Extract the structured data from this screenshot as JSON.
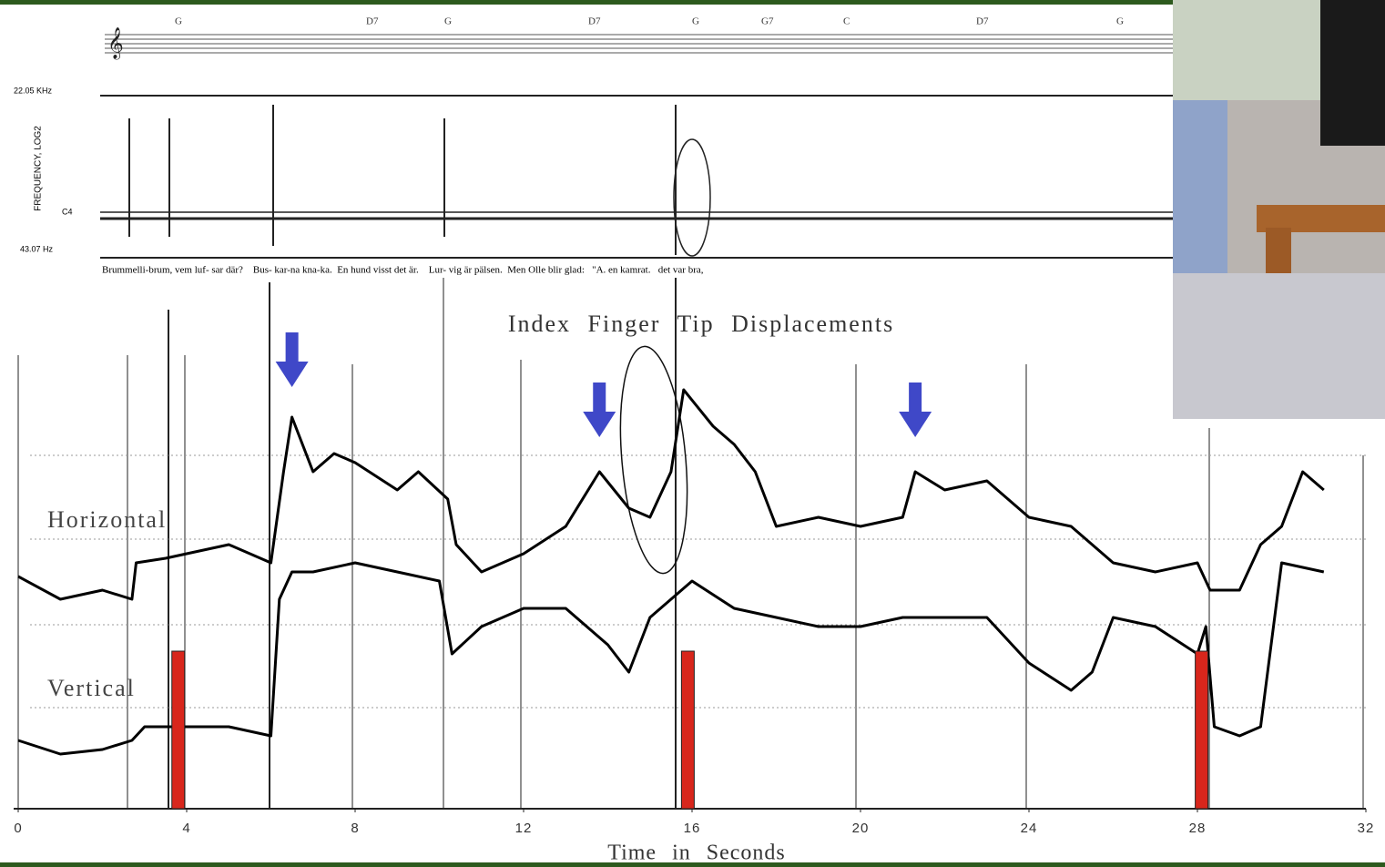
{
  "chart_data": {
    "type": "line",
    "title": "Index Finger Tip Displacements",
    "x_label": "Time in Seconds",
    "xlim": [
      0,
      32
    ],
    "xticks": [
      0,
      4,
      8,
      12,
      16,
      20,
      24,
      28,
      32
    ],
    "ylim": [
      0,
      100
    ],
    "highlight_color": "#d8261c",
    "highlights_x": [
      3.8,
      15.9,
      28.1
    ],
    "arrow_color": "#3f48c8",
    "arrows_x": [
      6.5,
      13.8,
      21.3
    ],
    "x": [],
    "series": [
      {
        "name": "Horizontal",
        "color": "#000000",
        "x": [
          0,
          1,
          2,
          2.7,
          2.8,
          3.5,
          4,
          5,
          6,
          6.3,
          6.5,
          7,
          7.5,
          8,
          9,
          9.5,
          10.2,
          10.4,
          11,
          12,
          13,
          13.8,
          14.5,
          15,
          15.5,
          15.8,
          16.5,
          17,
          17.5,
          18,
          19,
          20,
          21,
          21.3,
          22,
          23,
          24,
          25,
          26,
          27,
          28,
          28.3,
          29,
          29.5,
          30,
          30.5,
          31
        ],
        "values": [
          51,
          46,
          48,
          46,
          54,
          55,
          56,
          58,
          54,
          74,
          86,
          74,
          78,
          76,
          70,
          74,
          68,
          58,
          52,
          56,
          62,
          74,
          66,
          64,
          74,
          92,
          84,
          80,
          74,
          62,
          64,
          62,
          64,
          74,
          70,
          72,
          64,
          62,
          54,
          52,
          54,
          48,
          48,
          58,
          62,
          74,
          70
        ]
      },
      {
        "name": "Vertical",
        "color": "#000000",
        "x": [
          0,
          1,
          2,
          2.7,
          3,
          4,
          5,
          6,
          6.2,
          6.5,
          7,
          8,
          9,
          10,
          10.3,
          11,
          12,
          13,
          14,
          14.5,
          15,
          16,
          17,
          18,
          19,
          20,
          21,
          22,
          23,
          24,
          25,
          25.5,
          26,
          27,
          28,
          28.2,
          28.4,
          29,
          29.5,
          30,
          31
        ],
        "values": [
          15,
          12,
          13,
          15,
          18,
          18,
          18,
          16,
          46,
          52,
          52,
          54,
          52,
          50,
          34,
          40,
          44,
          44,
          36,
          30,
          42,
          50,
          44,
          42,
          40,
          40,
          42,
          42,
          42,
          32,
          26,
          30,
          42,
          40,
          34,
          40,
          18,
          16,
          18,
          54,
          52
        ]
      }
    ]
  },
  "spectrogram": {
    "y_label": "FREQUENCY, LOG2",
    "top_label": "22.05 KHz",
    "bottom_label": "43.07 Hz",
    "note_label": "C4",
    "chords": [
      "G",
      "D7",
      "G",
      "D7",
      "G",
      "G7",
      "C",
      "D7",
      "G"
    ],
    "lyrics": "Brummelli-brum, vem luf- sar där?    Bus- kar-na kna-ka.  En hund visst det är.    Lur- vig är pälsen.  Men Olle blir glad:   \"A. en kamrat.   det var bra,"
  }
}
